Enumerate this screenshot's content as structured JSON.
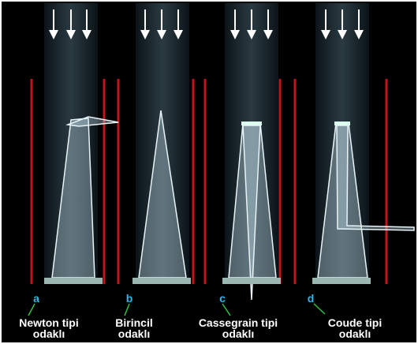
{
  "panels": [
    {
      "letter": "a",
      "caption": [
        "Newton tipi",
        "odaklı"
      ]
    },
    {
      "letter": "b",
      "caption": [
        "Birincil",
        "odaklı"
      ]
    },
    {
      "letter": "c",
      "caption": [
        "Cassegrain tipi",
        "odaklı"
      ]
    },
    {
      "letter": "d",
      "caption": [
        "Coude tipi",
        "odaklı"
      ]
    }
  ]
}
